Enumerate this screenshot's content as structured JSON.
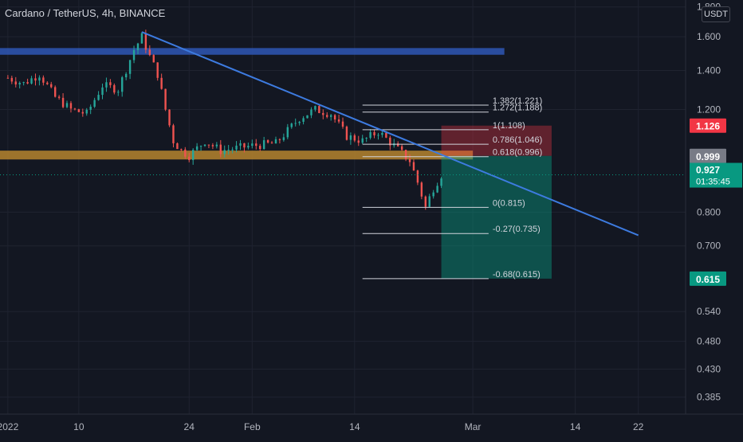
{
  "header": {
    "title": "Cardano / TetherUS, 4h, BINANCE",
    "currency": "USDT"
  },
  "price_scale": {
    "ticks": [
      {
        "value": 1.8,
        "label": "1.800"
      },
      {
        "value": 1.6,
        "label": "1.600"
      },
      {
        "value": 1.4,
        "label": "1.400"
      },
      {
        "value": 1.2,
        "label": "1.200"
      },
      {
        "value": 0.8,
        "label": "0.800"
      },
      {
        "value": 0.7,
        "label": "0.700"
      },
      {
        "value": 0.54,
        "label": "0.540"
      },
      {
        "value": 0.48,
        "label": "0.480"
      },
      {
        "value": 0.43,
        "label": "0.430"
      },
      {
        "value": 0.385,
        "label": "0.385"
      }
    ],
    "badges": [
      {
        "value": 1.126,
        "label": "1.126",
        "color": "#f23645"
      },
      {
        "value": 0.999,
        "label": "0.999",
        "color": "#787b86"
      },
      {
        "value": 0.615,
        "label": "0.615",
        "color": "#089981"
      }
    ],
    "current_price": {
      "value": 0.927,
      "label": "0.927",
      "countdown": "01:35:45",
      "color": "#089981"
    }
  },
  "time_scale": {
    "ticks": [
      {
        "date": "2022-01-01",
        "label": "2022"
      },
      {
        "date": "2022-01-10",
        "label": "10"
      },
      {
        "date": "2022-01-24",
        "label": "24"
      },
      {
        "date": "2022-02-01",
        "label": "Feb"
      },
      {
        "date": "2022-02-14",
        "label": "14"
      },
      {
        "date": "2022-03-01",
        "label": "Mar"
      },
      {
        "date": "2022-03-14",
        "label": "14"
      },
      {
        "date": "2022-03-22",
        "label": "22"
      }
    ]
  },
  "chart_data": {
    "type": "candlestick",
    "y_scale": "log",
    "ylim": [
      0.36,
      1.85
    ],
    "xlim": [
      "2021-12-31",
      "2022-03-28"
    ],
    "grid": true,
    "price_path": [
      [
        "2022-01-01",
        1.36
      ],
      [
        "2022-01-03",
        1.33
      ],
      [
        "2022-01-05",
        1.38
      ],
      [
        "2022-01-07",
        1.26
      ],
      [
        "2022-01-09",
        1.2
      ],
      [
        "2022-01-11",
        1.18
      ],
      [
        "2022-01-13",
        1.32
      ],
      [
        "2022-01-15",
        1.3
      ],
      [
        "2022-01-17",
        1.52
      ],
      [
        "2022-01-18",
        1.6
      ],
      [
        "2022-01-19",
        1.48
      ],
      [
        "2022-01-20",
        1.38
      ],
      [
        "2022-01-21",
        1.2
      ],
      [
        "2022-01-22",
        1.06
      ],
      [
        "2022-01-23",
        1.02
      ],
      [
        "2022-01-24",
        1.0
      ],
      [
        "2022-01-26",
        1.06
      ],
      [
        "2022-01-28",
        1.02
      ],
      [
        "2022-02-01",
        1.04
      ],
      [
        "2022-02-04",
        1.05
      ],
      [
        "2022-02-07",
        1.16
      ],
      [
        "2022-02-09",
        1.2
      ],
      [
        "2022-02-11",
        1.18
      ],
      [
        "2022-02-13",
        1.08
      ],
      [
        "2022-02-15",
        1.06
      ],
      [
        "2022-02-17",
        1.1
      ],
      [
        "2022-02-19",
        1.04
      ],
      [
        "2022-02-21",
        0.98
      ],
      [
        "2022-02-22",
        0.9
      ],
      [
        "2022-02-23",
        0.815
      ],
      [
        "2022-02-24",
        0.88
      ],
      [
        "2022-02-25",
        0.927
      ]
    ],
    "zones": [
      {
        "y1": 1.49,
        "y2": 1.53,
        "x1": "2021-12-31",
        "x2": "2022-03-05",
        "color": "#2f57b5"
      },
      {
        "y1": 0.985,
        "y2": 1.02,
        "x1": "2021-12-31",
        "x2": "2022-02-29",
        "color": "#b6842e"
      }
    ],
    "trendline": {
      "from": [
        "2022-01-18",
        1.63
      ],
      "to": [
        "2022-03-22",
        0.73
      ],
      "color": "#3d7be0"
    },
    "fibonacci": {
      "x1": "2022-02-15",
      "x2": "2022-03-03",
      "levels": [
        {
          "ratio": "1.382",
          "price": 1.221,
          "label": "1.382(1.221)"
        },
        {
          "ratio": "1.272",
          "price": 1.188,
          "label": "1.272(1.188)"
        },
        {
          "ratio": "1",
          "price": 1.108,
          "label": "1(1.108)"
        },
        {
          "ratio": "0.786",
          "price": 1.046,
          "label": "0.786(1.046)"
        },
        {
          "ratio": "0.618",
          "price": 0.996,
          "label": "0.618(0.996)"
        },
        {
          "ratio": "0",
          "price": 0.815,
          "label": "0(0.815)"
        },
        {
          "ratio": "-0.27",
          "price": 0.735,
          "label": "-0.27(0.735)"
        },
        {
          "ratio": "-0.68",
          "price": 0.615,
          "label": "-0.68(0.615)"
        }
      ]
    },
    "position": {
      "x1": "2022-02-25",
      "x2": "2022-03-11",
      "entry": 0.999,
      "stop": 1.126,
      "target": 0.615,
      "stop_color": "#f23645",
      "target_color": "#089981"
    }
  }
}
